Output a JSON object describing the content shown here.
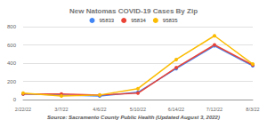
{
  "chart_data": {
    "type": "line",
    "title": "New Natomas COVID-19 Cases By Zip",
    "annotation": "Source: Sacramento County Public Health (Updated August 3, 2022)",
    "categories": [
      "2/22/22",
      "3/7/22",
      "4/6/22",
      "5/10/22",
      "6/14/22",
      "7/12/22",
      "8/3/22"
    ],
    "series": [
      {
        "name": "95833",
        "color": "#4285f4",
        "values": [
          60,
          50,
          40,
          80,
          340,
          590,
          370
        ]
      },
      {
        "name": "95834",
        "color": "#ea4335",
        "values": [
          60,
          60,
          50,
          70,
          350,
          600,
          380
        ]
      },
      {
        "name": "95835",
        "color": "#fbbc04",
        "values": [
          70,
          40,
          50,
          120,
          440,
          700,
          390
        ]
      }
    ],
    "ylim": [
      0,
      800
    ],
    "yticks": [
      0,
      200,
      400,
      600,
      800
    ],
    "grid": true,
    "legend": "top",
    "marker": "circle"
  }
}
